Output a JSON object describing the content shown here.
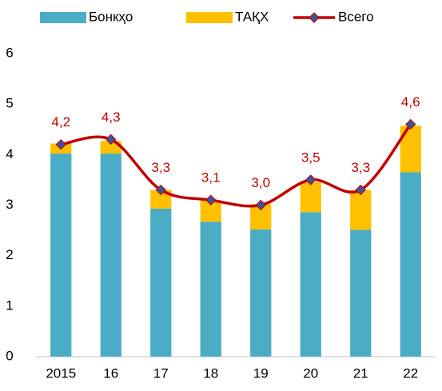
{
  "chart_data": {
    "type": "bar",
    "stacked": true,
    "categories": [
      "2015",
      "16",
      "17",
      "18",
      "19",
      "20",
      "21",
      "22"
    ],
    "series": [
      {
        "name": "Бонкҳо",
        "color": "#4bacc6",
        "values": [
          4.02,
          4.02,
          2.93,
          2.67,
          2.52,
          2.86,
          2.51,
          3.65
        ]
      },
      {
        "name": "ТАҚХ",
        "color": "#ffc000",
        "values": [
          0.2,
          0.25,
          0.37,
          0.43,
          0.5,
          0.59,
          0.79,
          0.92
        ]
      },
      {
        "name": "Всего",
        "type": "line",
        "color": "#c00000",
        "marker_color": "#3f5496",
        "values": [
          4.2,
          4.3,
          3.3,
          3.1,
          3.0,
          3.5,
          3.3,
          4.6
        ],
        "value_labels": [
          "4,2",
          "4,3",
          "3,3",
          "3,1",
          "3,0",
          "3,5",
          "3,3",
          "4,6"
        ]
      }
    ],
    "ylim": [
      0,
      6
    ],
    "yticks": [
      0,
      1,
      2,
      3,
      4,
      5,
      6
    ],
    "grid": false,
    "legend": "top"
  }
}
